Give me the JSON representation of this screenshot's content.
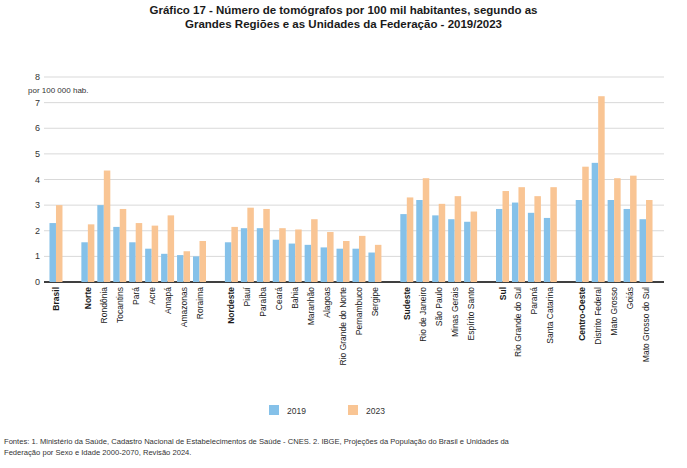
{
  "chart_data": {
    "type": "bar",
    "title": "Gráfico 17 - Número de tomógrafos por 100 mil habitantes, segundo as\nGrandes Regiões e as Unidades da Federação - 2019/2023",
    "ylabel": "por 100 000 hab.",
    "source": [
      "Fontes: 1. Ministério da Saúde, Cadastro Nacional de Estabelecimentos de Saúde - CNES. 2. IBGE, Projeções da População do Brasil e Unidades da",
      "Federação por Sexo e Idade 2000-2070, Revisão 2024."
    ],
    "categories": [
      "Brasil",
      null,
      "Norte",
      "Rondônia",
      "Tocantins",
      "Pará",
      "Acre",
      "Amapá",
      "Amazonas",
      "Roraima",
      null,
      "Nordeste",
      "Piauí",
      "Paraíba",
      "Ceará",
      "Bahia",
      "Maranhão",
      "Alagoas",
      "Rio Grande do Norte",
      "Pernambuco",
      "Sergipe",
      null,
      "Sudeste",
      "Rio de Janeiro",
      "São Paulo",
      "Minas Gerais",
      "Espírito Santo",
      null,
      "Sul",
      "Rio Grande do Sul",
      "Paraná",
      "Santa Catarina",
      null,
      "Centro-Oeste",
      "Distrito Federal",
      "Mato Grosso",
      "Goiás",
      "Mato Grosso do Sul"
    ],
    "series": [
      {
        "name": "2019",
        "color": "#85c1e9",
        "values": [
          2.3,
          null,
          1.55,
          3.0,
          2.15,
          1.55,
          1.3,
          1.1,
          1.05,
          1.0,
          null,
          1.55,
          2.1,
          2.1,
          1.65,
          1.5,
          1.45,
          1.35,
          1.3,
          1.3,
          1.15,
          null,
          2.65,
          3.2,
          2.6,
          2.45,
          2.35,
          null,
          2.85,
          3.1,
          2.7,
          2.5,
          null,
          3.2,
          4.65,
          3.2,
          2.85,
          2.45
        ]
      },
      {
        "name": "2023",
        "color": "#f9c594",
        "values": [
          3.0,
          null,
          2.25,
          4.35,
          2.85,
          2.3,
          2.2,
          2.6,
          1.2,
          1.6,
          null,
          2.15,
          2.9,
          2.85,
          2.1,
          2.05,
          2.45,
          1.95,
          1.6,
          1.8,
          1.45,
          null,
          3.3,
          4.05,
          3.05,
          3.35,
          2.75,
          null,
          3.55,
          3.7,
          3.35,
          3.7,
          null,
          4.5,
          7.25,
          4.05,
          4.15,
          3.2
        ]
      }
    ],
    "ylim": [
      0,
      8
    ],
    "yticks": [
      0,
      1,
      2,
      3,
      4,
      5,
      6,
      7,
      8
    ],
    "grid": true,
    "legend": "bottom"
  }
}
